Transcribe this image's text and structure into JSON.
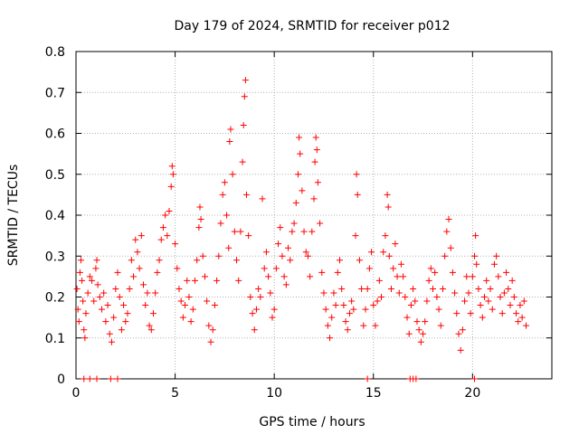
{
  "chart_data": {
    "type": "scatter",
    "title": "Day 179 of 2024, SRMTID for receiver p012",
    "xlabel": "GPS time / hours",
    "ylabel": "SRMTID / TECUs",
    "xlim": [
      0,
      24
    ],
    "ylim": [
      0,
      0.8
    ],
    "xticks": [
      0,
      5,
      10,
      15,
      20
    ],
    "yticks": [
      0,
      0.1,
      0.2,
      0.3,
      0.4,
      0.5,
      0.6,
      0.7,
      0.8
    ],
    "grid": true,
    "marker": "plus",
    "color": "#ff0000",
    "series": [
      {
        "name": "SRMTID",
        "points": [
          [
            0.05,
            0.22
          ],
          [
            0.1,
            0.17
          ],
          [
            0.15,
            0.14
          ],
          [
            0.2,
            0.26
          ],
          [
            0.25,
            0.29
          ],
          [
            0.3,
            0.24
          ],
          [
            0.35,
            0.19
          ],
          [
            0.4,
            0.12
          ],
          [
            0.45,
            0.1
          ],
          [
            0.5,
            0.16
          ],
          [
            0.6,
            0.21
          ],
          [
            0.7,
            0.25
          ],
          [
            0.8,
            0.24
          ],
          [
            0.9,
            0.19
          ],
          [
            1.0,
            0.27
          ],
          [
            1.05,
            0.29
          ],
          [
            1.1,
            0.23
          ],
          [
            1.2,
            0.2
          ],
          [
            1.3,
            0.17
          ],
          [
            1.4,
            0.21
          ],
          [
            1.5,
            0.14
          ],
          [
            1.6,
            0.18
          ],
          [
            1.7,
            0.11
          ],
          [
            1.8,
            0.09
          ],
          [
            1.9,
            0.15
          ],
          [
            2.0,
            0.22
          ],
          [
            2.1,
            0.26
          ],
          [
            2.2,
            0.2
          ],
          [
            2.3,
            0.12
          ],
          [
            2.4,
            0.18
          ],
          [
            2.5,
            0.14
          ],
          [
            2.6,
            0.16
          ],
          [
            2.7,
            0.22
          ],
          [
            2.8,
            0.29
          ],
          [
            2.9,
            0.25
          ],
          [
            3.0,
            0.34
          ],
          [
            3.1,
            0.31
          ],
          [
            3.2,
            0.27
          ],
          [
            3.3,
            0.35
          ],
          [
            3.4,
            0.23
          ],
          [
            3.5,
            0.18
          ],
          [
            3.6,
            0.21
          ],
          [
            3.7,
            0.13
          ],
          [
            3.8,
            0.12
          ],
          [
            3.9,
            0.16
          ],
          [
            4.0,
            0.21
          ],
          [
            4.1,
            0.26
          ],
          [
            4.2,
            0.29
          ],
          [
            4.3,
            0.34
          ],
          [
            4.4,
            0.37
          ],
          [
            4.5,
            0.4
          ],
          [
            4.6,
            0.35
          ],
          [
            4.7,
            0.41
          ],
          [
            4.8,
            0.47
          ],
          [
            4.85,
            0.52
          ],
          [
            4.9,
            0.5
          ],
          [
            5.0,
            0.33
          ],
          [
            5.1,
            0.27
          ],
          [
            5.2,
            0.22
          ],
          [
            5.3,
            0.19
          ],
          [
            5.4,
            0.15
          ],
          [
            5.5,
            0.18
          ],
          [
            5.6,
            0.24
          ],
          [
            5.7,
            0.2
          ],
          [
            5.8,
            0.14
          ],
          [
            5.9,
            0.17
          ],
          [
            6.0,
            0.24
          ],
          [
            6.1,
            0.29
          ],
          [
            6.2,
            0.37
          ],
          [
            6.25,
            0.42
          ],
          [
            6.3,
            0.39
          ],
          [
            6.4,
            0.3
          ],
          [
            6.5,
            0.25
          ],
          [
            6.6,
            0.19
          ],
          [
            6.7,
            0.13
          ],
          [
            6.8,
            0.09
          ],
          [
            6.9,
            0.12
          ],
          [
            7.0,
            0.18
          ],
          [
            7.1,
            0.24
          ],
          [
            7.2,
            0.3
          ],
          [
            7.3,
            0.38
          ],
          [
            7.4,
            0.45
          ],
          [
            7.5,
            0.48
          ],
          [
            7.6,
            0.4
          ],
          [
            7.7,
            0.32
          ],
          [
            7.75,
            0.58
          ],
          [
            7.8,
            0.61
          ],
          [
            7.9,
            0.5
          ],
          [
            8.0,
            0.36
          ],
          [
            8.1,
            0.29
          ],
          [
            8.2,
            0.24
          ],
          [
            8.3,
            0.36
          ],
          [
            8.4,
            0.53
          ],
          [
            8.45,
            0.62
          ],
          [
            8.5,
            0.69
          ],
          [
            8.55,
            0.73
          ],
          [
            8.6,
            0.45
          ],
          [
            8.7,
            0.35
          ],
          [
            8.8,
            0.2
          ],
          [
            8.9,
            0.16
          ],
          [
            9.0,
            0.12
          ],
          [
            9.1,
            0.17
          ],
          [
            9.2,
            0.22
          ],
          [
            9.3,
            0.2
          ],
          [
            9.4,
            0.44
          ],
          [
            9.5,
            0.27
          ],
          [
            9.6,
            0.31
          ],
          [
            9.7,
            0.25
          ],
          [
            9.8,
            0.21
          ],
          [
            9.9,
            0.15
          ],
          [
            10.0,
            0.17
          ],
          [
            10.1,
            0.27
          ],
          [
            10.2,
            0.33
          ],
          [
            10.3,
            0.37
          ],
          [
            10.4,
            0.3
          ],
          [
            10.5,
            0.25
          ],
          [
            10.6,
            0.23
          ],
          [
            10.7,
            0.32
          ],
          [
            10.8,
            0.29
          ],
          [
            10.9,
            0.36
          ],
          [
            11.0,
            0.38
          ],
          [
            11.1,
            0.43
          ],
          [
            11.2,
            0.5
          ],
          [
            11.25,
            0.59
          ],
          [
            11.3,
            0.55
          ],
          [
            11.4,
            0.46
          ],
          [
            11.5,
            0.36
          ],
          [
            11.6,
            0.31
          ],
          [
            11.7,
            0.3
          ],
          [
            11.8,
            0.25
          ],
          [
            11.9,
            0.36
          ],
          [
            12.0,
            0.44
          ],
          [
            12.05,
            0.53
          ],
          [
            12.1,
            0.59
          ],
          [
            12.15,
            0.56
          ],
          [
            12.2,
            0.48
          ],
          [
            12.3,
            0.38
          ],
          [
            12.4,
            0.26
          ],
          [
            12.5,
            0.21
          ],
          [
            12.6,
            0.17
          ],
          [
            12.7,
            0.13
          ],
          [
            12.8,
            0.1
          ],
          [
            12.9,
            0.15
          ],
          [
            13.0,
            0.21
          ],
          [
            13.1,
            0.18
          ],
          [
            13.2,
            0.26
          ],
          [
            13.3,
            0.29
          ],
          [
            13.4,
            0.22
          ],
          [
            13.5,
            0.18
          ],
          [
            13.6,
            0.14
          ],
          [
            13.7,
            0.12
          ],
          [
            13.8,
            0.16
          ],
          [
            13.9,
            0.19
          ],
          [
            14.0,
            0.17
          ],
          [
            14.1,
            0.35
          ],
          [
            14.15,
            0.5
          ],
          [
            14.2,
            0.45
          ],
          [
            14.3,
            0.29
          ],
          [
            14.4,
            0.22
          ],
          [
            14.5,
            0.13
          ],
          [
            14.6,
            0.17
          ],
          [
            14.7,
            0.22
          ],
          [
            14.8,
            0.27
          ],
          [
            14.9,
            0.31
          ],
          [
            15.0,
            0.18
          ],
          [
            15.1,
            0.13
          ],
          [
            15.2,
            0.19
          ],
          [
            15.3,
            0.24
          ],
          [
            15.4,
            0.2
          ],
          [
            15.5,
            0.31
          ],
          [
            15.6,
            0.35
          ],
          [
            15.7,
            0.45
          ],
          [
            15.75,
            0.42
          ],
          [
            15.8,
            0.3
          ],
          [
            15.9,
            0.22
          ],
          [
            16.0,
            0.27
          ],
          [
            16.1,
            0.33
          ],
          [
            16.2,
            0.25
          ],
          [
            16.3,
            0.21
          ],
          [
            16.4,
            0.28
          ],
          [
            16.5,
            0.25
          ],
          [
            16.6,
            0.2
          ],
          [
            16.7,
            0.15
          ],
          [
            16.8,
            0.11
          ],
          [
            16.9,
            0.18
          ],
          [
            17.0,
            0.22
          ],
          [
            17.1,
            0.19
          ],
          [
            17.2,
            0.14
          ],
          [
            17.3,
            0.12
          ],
          [
            17.4,
            0.09
          ],
          [
            17.5,
            0.11
          ],
          [
            17.6,
            0.14
          ],
          [
            17.7,
            0.19
          ],
          [
            17.8,
            0.24
          ],
          [
            17.9,
            0.27
          ],
          [
            18.0,
            0.22
          ],
          [
            18.1,
            0.26
          ],
          [
            18.2,
            0.2
          ],
          [
            18.3,
            0.17
          ],
          [
            18.4,
            0.13
          ],
          [
            18.5,
            0.22
          ],
          [
            18.6,
            0.3
          ],
          [
            18.7,
            0.36
          ],
          [
            18.8,
            0.39
          ],
          [
            18.9,
            0.32
          ],
          [
            19.0,
            0.26
          ],
          [
            19.1,
            0.21
          ],
          [
            19.2,
            0.16
          ],
          [
            19.3,
            0.11
          ],
          [
            19.4,
            0.07
          ],
          [
            19.5,
            0.12
          ],
          [
            19.6,
            0.19
          ],
          [
            19.7,
            0.25
          ],
          [
            19.8,
            0.21
          ],
          [
            19.9,
            0.16
          ],
          [
            20.0,
            0.25
          ],
          [
            20.1,
            0.3
          ],
          [
            20.15,
            0.35
          ],
          [
            20.2,
            0.28
          ],
          [
            20.3,
            0.22
          ],
          [
            20.4,
            0.18
          ],
          [
            20.5,
            0.15
          ],
          [
            20.6,
            0.2
          ],
          [
            20.7,
            0.24
          ],
          [
            20.8,
            0.19
          ],
          [
            20.9,
            0.22
          ],
          [
            21.0,
            0.17
          ],
          [
            21.1,
            0.28
          ],
          [
            21.2,
            0.3
          ],
          [
            21.3,
            0.25
          ],
          [
            21.4,
            0.2
          ],
          [
            21.5,
            0.16
          ],
          [
            21.6,
            0.21
          ],
          [
            21.7,
            0.26
          ],
          [
            21.8,
            0.22
          ],
          [
            21.9,
            0.18
          ],
          [
            22.0,
            0.24
          ],
          [
            22.1,
            0.2
          ],
          [
            22.2,
            0.16
          ],
          [
            22.3,
            0.14
          ],
          [
            22.4,
            0.18
          ],
          [
            22.5,
            0.15
          ],
          [
            22.6,
            0.19
          ],
          [
            22.7,
            0.13
          ],
          [
            0.4,
            0.0
          ],
          [
            0.7,
            0.0
          ],
          [
            1.05,
            0.0
          ],
          [
            1.75,
            0.0
          ],
          [
            2.1,
            0.0
          ],
          [
            14.7,
            0.0
          ],
          [
            16.85,
            0.0
          ],
          [
            17.0,
            0.0
          ],
          [
            17.15,
            0.0
          ],
          [
            20.1,
            0.0
          ]
        ]
      }
    ]
  }
}
